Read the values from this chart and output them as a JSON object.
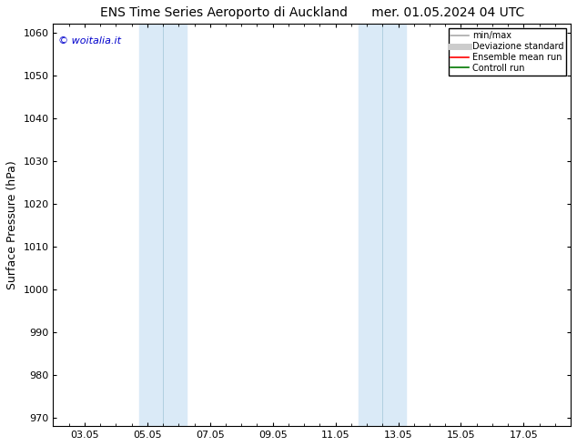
{
  "title_left": "ENS Time Series Aeroporto di Auckland",
  "title_right": "mer. 01.05.2024 04 UTC",
  "ylabel": "Surface Pressure (hPa)",
  "ylim": [
    968,
    1062
  ],
  "yticks": [
    970,
    980,
    990,
    1000,
    1010,
    1020,
    1030,
    1040,
    1050,
    1060
  ],
  "xtick_labels": [
    "03.05",
    "05.05",
    "07.05",
    "09.05",
    "11.05",
    "13.05",
    "15.05",
    "17.05"
  ],
  "xtick_positions": [
    2.0,
    4.0,
    6.0,
    8.0,
    10.0,
    12.0,
    14.0,
    16.0
  ],
  "xlim": [
    1.0,
    17.5
  ],
  "shade_bands": [
    {
      "xmin": 3.75,
      "xmax": 4.5
    },
    {
      "xmin": 4.5,
      "xmax": 5.25
    },
    {
      "xmin": 10.75,
      "xmax": 11.5
    },
    {
      "xmin": 11.5,
      "xmax": 12.25
    }
  ],
  "shade_color": "#daeaf7",
  "shade_separator_color": "#b0cfe0",
  "watermark": "© woitalia.it",
  "watermark_color": "#0000cc",
  "legend_items": [
    {
      "label": "min/max",
      "color": "#aaaaaa",
      "lw": 1.2,
      "style": "solid"
    },
    {
      "label": "Deviazione standard",
      "color": "#cccccc",
      "lw": 5,
      "style": "solid"
    },
    {
      "label": "Ensemble mean run",
      "color": "#ff0000",
      "lw": 1.2,
      "style": "solid"
    },
    {
      "label": "Controll run",
      "color": "#007700",
      "lw": 1.2,
      "style": "solid"
    }
  ],
  "bg_color": "#ffffff",
  "title_fontsize": 10,
  "axis_label_fontsize": 9,
  "tick_fontsize": 8,
  "watermark_fontsize": 8,
  "legend_fontsize": 7
}
